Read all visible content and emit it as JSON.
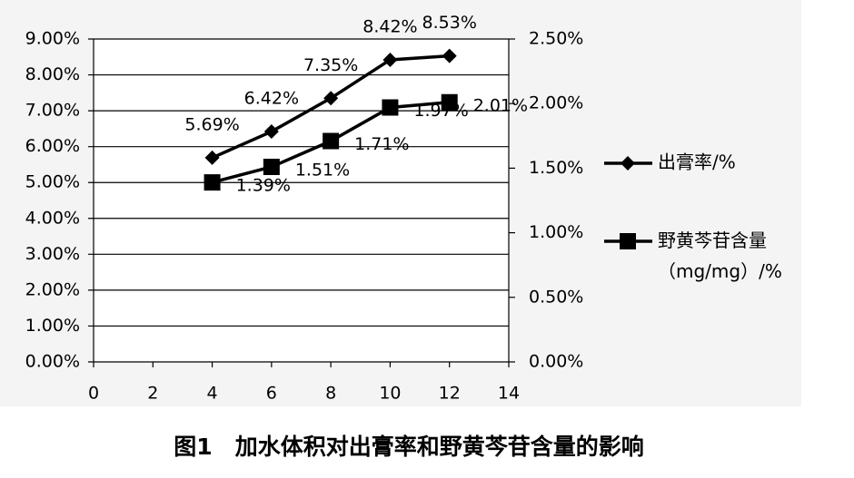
{
  "chart_data": {
    "type": "line",
    "caption": "图1　加水体积对出膏率和野黄芩苷含量的影响",
    "x": [
      4,
      6,
      8,
      10,
      12
    ],
    "xlim": [
      0,
      14
    ],
    "xticks": [
      0,
      2,
      4,
      6,
      8,
      10,
      12,
      14
    ],
    "ylim": [
      0,
      9
    ],
    "yticks": [
      {
        "value": 0,
        "label": "0.00%"
      },
      {
        "value": 1,
        "label": "1.00%"
      },
      {
        "value": 2,
        "label": "2.00%"
      },
      {
        "value": 3,
        "label": "3.00%"
      },
      {
        "value": 4,
        "label": "4.00%"
      },
      {
        "value": 5,
        "label": "5.00%"
      },
      {
        "value": 6,
        "label": "6.00%"
      },
      {
        "value": 7,
        "label": "7.00%"
      },
      {
        "value": 8,
        "label": "8.00%"
      },
      {
        "value": 9,
        "label": "9.00%"
      }
    ],
    "y2lim": [
      0,
      2.5
    ],
    "y2ticks": [
      {
        "value": 0,
        "label": "0.00%"
      },
      {
        "value": 0.5,
        "label": "0.50%"
      },
      {
        "value": 1,
        "label": "1.00%"
      },
      {
        "value": 1.5,
        "label": "1.50%"
      },
      {
        "value": 2,
        "label": "2.00%"
      },
      {
        "value": 2.5,
        "label": "2.50%"
      }
    ],
    "grid": true,
    "legend": "right",
    "series": [
      {
        "name": "出膏率/%",
        "color": "#000000",
        "marker": "diamond",
        "axis": "y",
        "values": [
          5.69,
          6.42,
          7.35,
          8.42,
          8.53
        ],
        "value_labels": [
          "5.69%",
          "6.42%",
          "7.35%",
          "8.42%",
          "8.53%"
        ]
      },
      {
        "name": "野黄芩苷含量（mg/mg）/%",
        "color": "#000000",
        "marker": "square",
        "axis": "y2",
        "values": [
          1.39,
          1.51,
          1.71,
          1.97,
          2.01
        ],
        "value_labels": [
          "1.39%",
          "1.51%",
          "1.71%",
          "1.97%",
          "2.01%"
        ]
      }
    ]
  }
}
